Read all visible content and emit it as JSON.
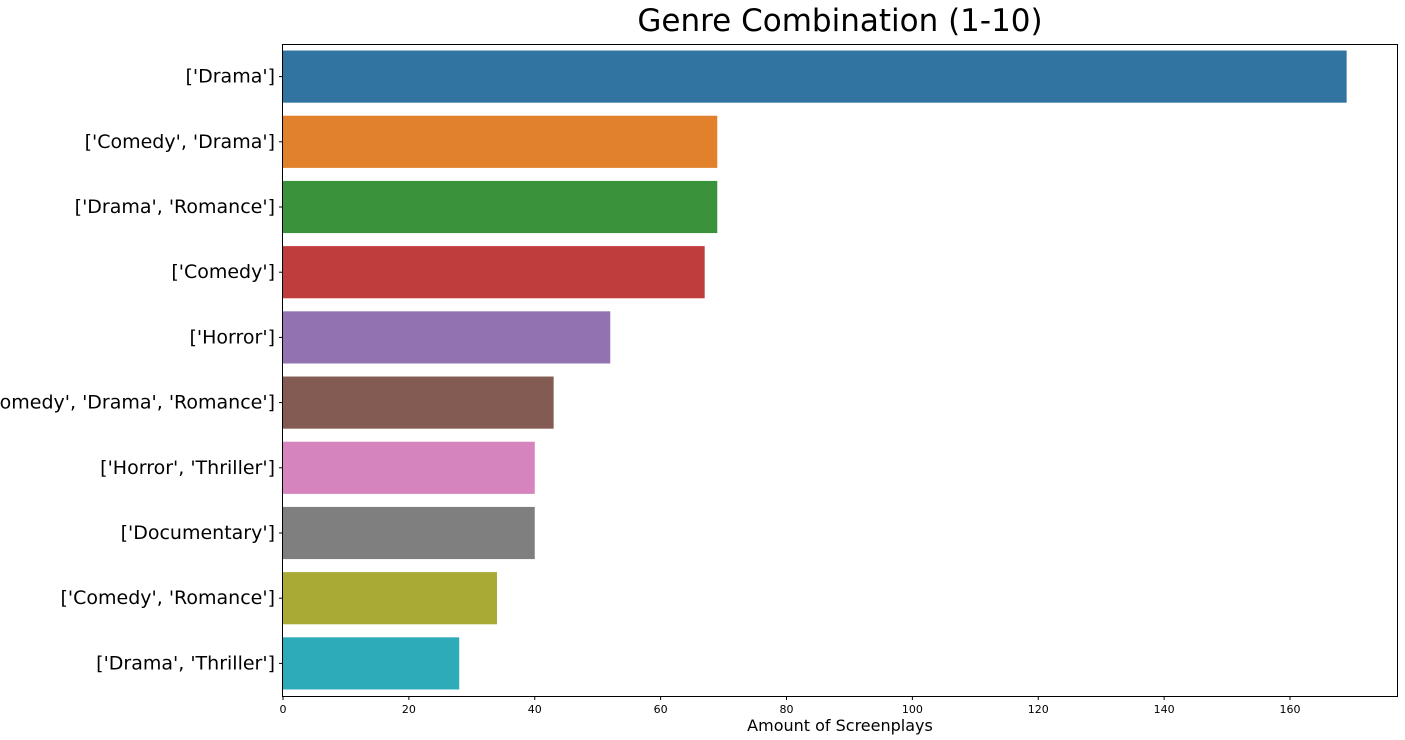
{
  "chart_data": {
    "type": "bar",
    "orientation": "horizontal",
    "title": "Genre Combination (1-10)",
    "xlabel": "Amount of Screenplays",
    "ylabel": "",
    "xlim": [
      0,
      177
    ],
    "xticks": [
      0,
      20,
      40,
      60,
      80,
      100,
      120,
      140,
      160
    ],
    "grid": false,
    "categories": [
      "['Drama']",
      "['Comedy', 'Drama']",
      "['Drama', 'Romance']",
      "['Comedy']",
      "['Horror']",
      "['Comedy', 'Drama', 'Romance']",
      "['Horror', 'Thriller']",
      "['Documentary']",
      "['Comedy', 'Romance']",
      "['Drama', 'Thriller']"
    ],
    "values": [
      169,
      69,
      69,
      67,
      52,
      43,
      40,
      40,
      34,
      28
    ],
    "colors": [
      "#3274a1",
      "#e1812c",
      "#3a923a",
      "#c03d3e",
      "#9372b2",
      "#845b53",
      "#d684bd",
      "#7f7f7f",
      "#a9aa35",
      "#2eabb8"
    ]
  }
}
